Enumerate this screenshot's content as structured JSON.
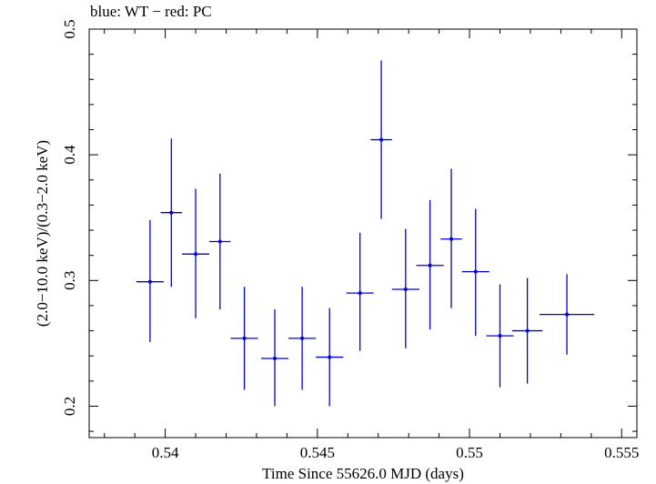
{
  "chart_data": {
    "type": "scatter",
    "title": "blue: WT − red: PC",
    "xlabel": "Time Since 55626.0 MJD (days)",
    "ylabel": "(2.0−10.0 keV)/(0.3−2.0 keV)",
    "xlim": [
      0.5375,
      0.5555
    ],
    "ylim": [
      0.175,
      0.5
    ],
    "x_ticks": [
      0.54,
      0.545,
      0.55,
      0.555
    ],
    "x_tick_labels": [
      "0.54",
      "0.545",
      "0.55",
      "0.555"
    ],
    "y_ticks": [
      0.2,
      0.3,
      0.4,
      0.5
    ],
    "y_tick_labels": [
      "0.2",
      "0.3",
      "0.4",
      "0.5"
    ],
    "series": [
      {
        "name": "WT",
        "color": "#0000dd",
        "points": [
          {
            "x": 0.5395,
            "y": 0.299,
            "xerr": 0.00045,
            "ylo": 0.251,
            "yhi": 0.348
          },
          {
            "x": 0.5402,
            "y": 0.354,
            "xerr": 0.00035,
            "ylo": 0.295,
            "yhi": 0.413
          },
          {
            "x": 0.541,
            "y": 0.321,
            "xerr": 0.00045,
            "ylo": 0.27,
            "yhi": 0.373
          },
          {
            "x": 0.5418,
            "y": 0.331,
            "xerr": 0.00035,
            "ylo": 0.277,
            "yhi": 0.385
          },
          {
            "x": 0.5426,
            "y": 0.254,
            "xerr": 0.00045,
            "ylo": 0.213,
            "yhi": 0.295
          },
          {
            "x": 0.5436,
            "y": 0.238,
            "xerr": 0.00045,
            "ylo": 0.2,
            "yhi": 0.277
          },
          {
            "x": 0.5445,
            "y": 0.254,
            "xerr": 0.00045,
            "ylo": 0.213,
            "yhi": 0.295
          },
          {
            "x": 0.5454,
            "y": 0.239,
            "xerr": 0.00045,
            "ylo": 0.2,
            "yhi": 0.278
          },
          {
            "x": 0.5464,
            "y": 0.29,
            "xerr": 0.00045,
            "ylo": 0.244,
            "yhi": 0.338
          },
          {
            "x": 0.5471,
            "y": 0.412,
            "xerr": 0.00035,
            "ylo": 0.349,
            "yhi": 0.475
          },
          {
            "x": 0.5479,
            "y": 0.293,
            "xerr": 0.00045,
            "ylo": 0.246,
            "yhi": 0.341
          },
          {
            "x": 0.5487,
            "y": 0.312,
            "xerr": 0.00045,
            "ylo": 0.261,
            "yhi": 0.364
          },
          {
            "x": 0.5494,
            "y": 0.333,
            "xerr": 0.00035,
            "ylo": 0.278,
            "yhi": 0.389
          },
          {
            "x": 0.5502,
            "y": 0.307,
            "xerr": 0.00045,
            "ylo": 0.256,
            "yhi": 0.357
          },
          {
            "x": 0.551,
            "y": 0.256,
            "xerr": 0.00045,
            "ylo": 0.215,
            "yhi": 0.297
          },
          {
            "x": 0.5519,
            "y": 0.26,
            "xerr": 0.0005,
            "ylo": 0.218,
            "yhi": 0.302
          },
          {
            "x": 0.5532,
            "y": 0.273,
            "xerr": 0.0009,
            "ylo": 0.241,
            "yhi": 0.305
          }
        ]
      }
    ]
  }
}
